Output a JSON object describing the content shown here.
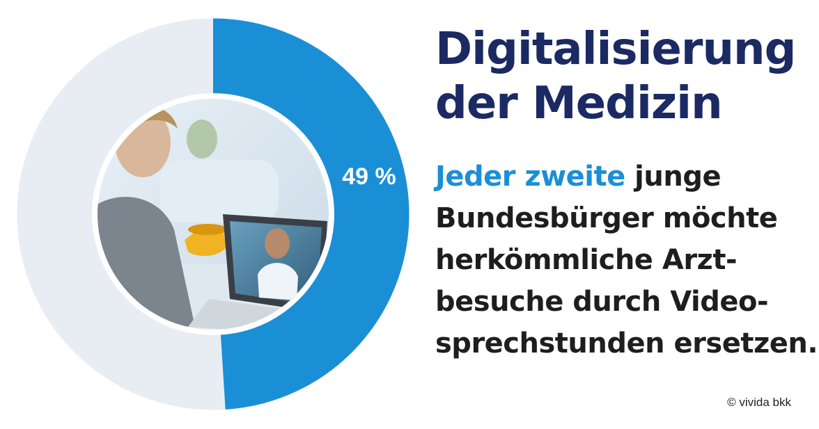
{
  "title": {
    "line1": "Digitalisierung",
    "line2": "der Medizin"
  },
  "statement": {
    "highlight": "Jeder zweite",
    "line1_rest": " junge",
    "line2": "Bundesbürger möchte",
    "line3": "herkömmliche Arzt-",
    "line4": "besuche durch Video-",
    "line5": "sprechstunden ersetzen."
  },
  "credit": "© vivida bkk",
  "colors": {
    "accent": "#1b8fd6",
    "track": "#e8edf3",
    "title": "#1b2a63",
    "highlight": "#1b8fd6",
    "text": "#1e1e1e"
  },
  "chart_data": {
    "type": "pie",
    "variant": "donut",
    "values": [
      49,
      51
    ],
    "data_label": "49 %",
    "direction": "clockwise",
    "start": "top",
    "center_image": "woman-video-call-photo"
  }
}
